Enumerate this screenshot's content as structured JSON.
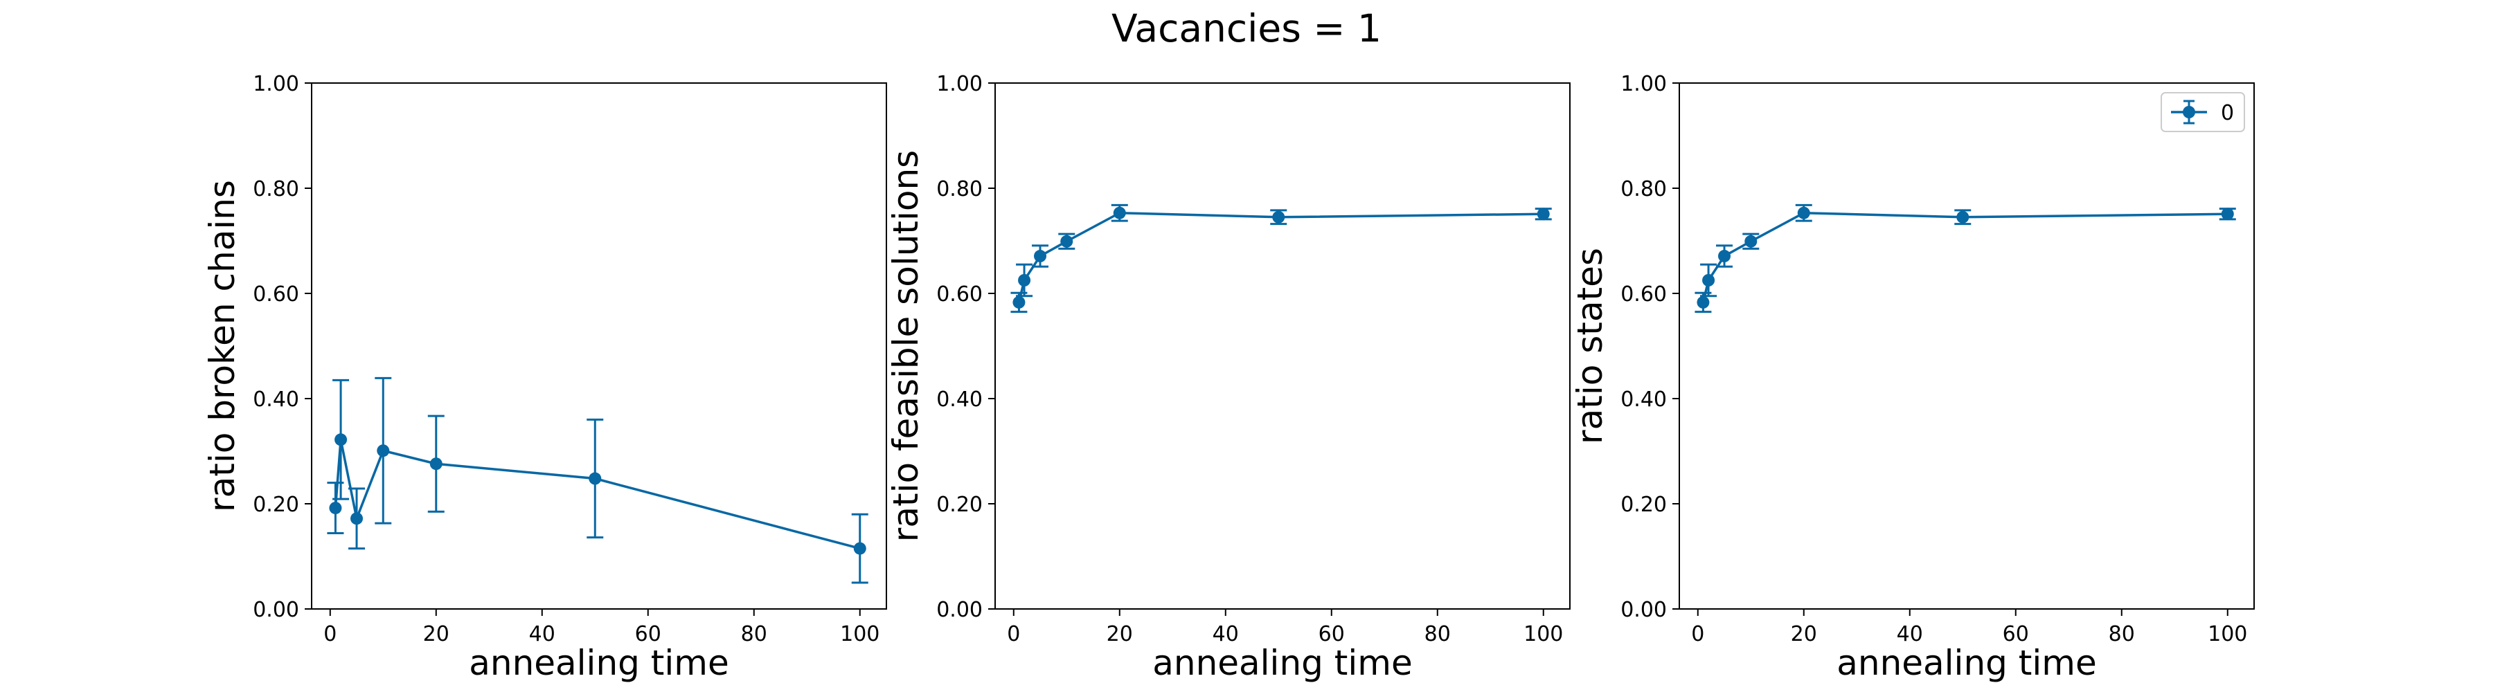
{
  "figure": {
    "title": "Vacancies = 1"
  },
  "chart_data": [
    {
      "type": "line",
      "error_bars": true,
      "xlabel": "annealing time",
      "ylabel": "ratio broken chains",
      "xlim": [
        -3.5,
        105
      ],
      "ylim": [
        0,
        1
      ],
      "xticks": [
        0,
        20,
        40,
        60,
        80,
        100
      ],
      "yticks": [
        "0.00",
        "0.20",
        "0.40",
        "0.60",
        "0.80",
        "1.00"
      ],
      "grid": false,
      "series": [
        {
          "name": "",
          "color": "#0868a4",
          "x": [
            1,
            2,
            5,
            10,
            20,
            50,
            100
          ],
          "y": [
            0.192,
            0.322,
            0.172,
            0.301,
            0.276,
            0.248,
            0.115
          ],
          "yerr": [
            0.048,
            0.113,
            0.057,
            0.138,
            0.091,
            0.112,
            0.065
          ]
        }
      ]
    },
    {
      "type": "line",
      "error_bars": true,
      "xlabel": "annealing time",
      "ylabel": "ratio feasible solutions",
      "xlim": [
        -3.5,
        105
      ],
      "ylim": [
        0,
        1
      ],
      "xticks": [
        0,
        20,
        40,
        60,
        80,
        100
      ],
      "yticks": [
        "0.00",
        "0.20",
        "0.40",
        "0.60",
        "0.80",
        "1.00"
      ],
      "grid": false,
      "series": [
        {
          "name": "",
          "color": "#0868a4",
          "x": [
            1,
            2,
            5,
            10,
            20,
            50,
            100
          ],
          "y": [
            0.583,
            0.625,
            0.671,
            0.699,
            0.753,
            0.745,
            0.751
          ],
          "yerr": [
            0.018,
            0.03,
            0.02,
            0.014,
            0.015,
            0.013,
            0.01
          ]
        }
      ]
    },
    {
      "type": "line",
      "error_bars": true,
      "xlabel": "annealing time",
      "ylabel": "ratio states",
      "xlim": [
        -3.5,
        105
      ],
      "ylim": [
        0,
        1
      ],
      "xticks": [
        0,
        20,
        40,
        60,
        80,
        100
      ],
      "yticks": [
        "0.00",
        "0.20",
        "0.40",
        "0.60",
        "0.80",
        "1.00"
      ],
      "grid": false,
      "legend": {
        "placement": "top-right",
        "entries": [
          "0"
        ]
      },
      "series": [
        {
          "name": "0",
          "color": "#0868a4",
          "x": [
            1,
            2,
            5,
            10,
            20,
            50,
            100
          ],
          "y": [
            0.583,
            0.625,
            0.671,
            0.699,
            0.753,
            0.745,
            0.751
          ],
          "yerr": [
            0.018,
            0.03,
            0.02,
            0.014,
            0.015,
            0.013,
            0.01
          ]
        }
      ]
    }
  ]
}
